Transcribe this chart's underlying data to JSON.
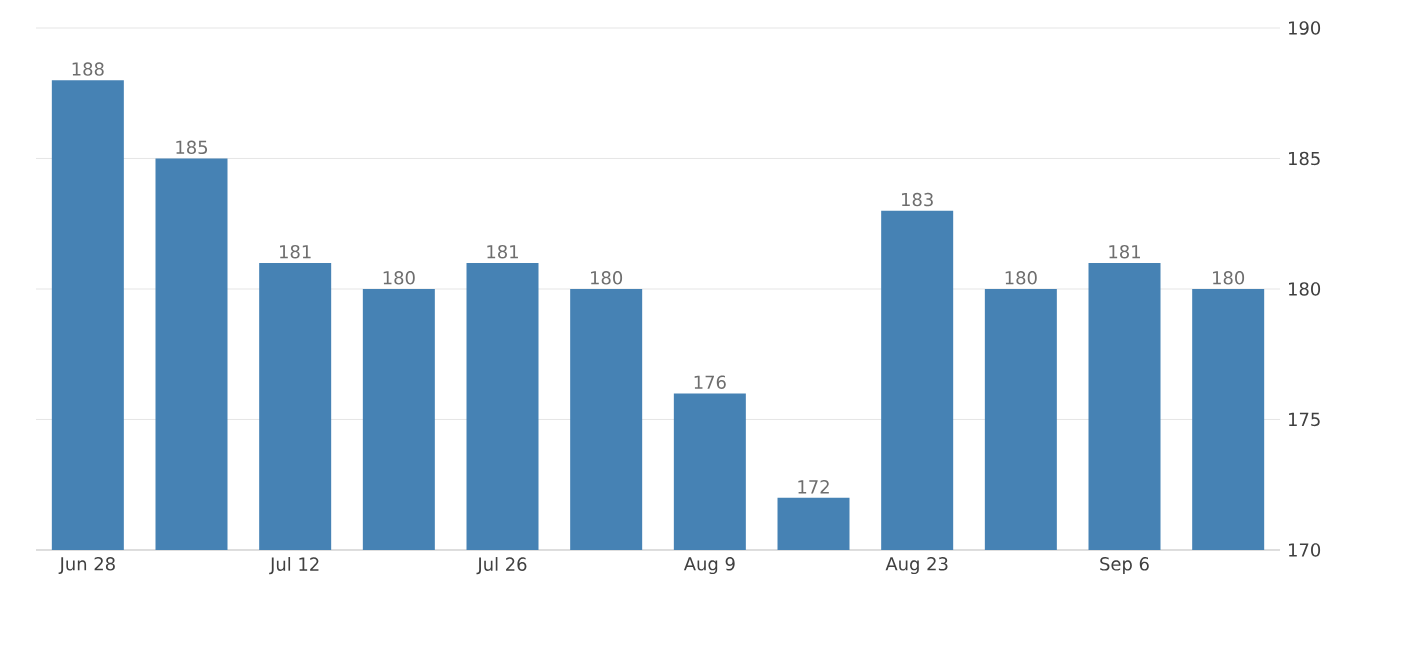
{
  "chart_data": {
    "type": "bar",
    "categories": [
      "Jun 28",
      null,
      "Jul 12",
      null,
      "Jul 26",
      null,
      "Aug 9",
      null,
      "Aug 23",
      null,
      "Sep 6",
      null
    ],
    "values": [
      188,
      185,
      181,
      180,
      181,
      180,
      176,
      172,
      183,
      180,
      181,
      180
    ],
    "color": "#4682b4",
    "ylim": [
      170,
      190
    ],
    "yticks": [
      170,
      175,
      180,
      185,
      190
    ],
    "grid": "y",
    "data_labels": true
  }
}
